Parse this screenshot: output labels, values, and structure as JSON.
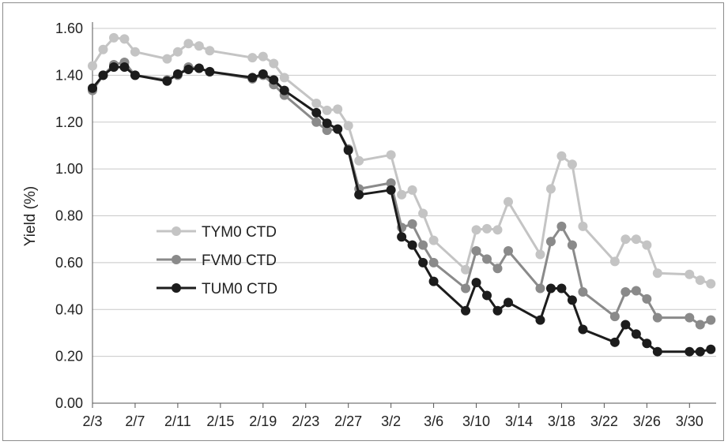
{
  "chart_data": {
    "type": "line",
    "title": "",
    "xlabel": "",
    "ylabel": "Yield (%)",
    "ylim": [
      0,
      1.6
    ],
    "yticks": [
      "0.00",
      "0.20",
      "0.40",
      "0.60",
      "0.80",
      "1.00",
      "1.20",
      "1.40",
      "1.60"
    ],
    "x_tick_labels": [
      "2/3",
      "2/7",
      "2/11",
      "2/15",
      "2/19",
      "2/23",
      "2/27",
      "3/2",
      "3/6",
      "3/10",
      "3/14",
      "3/18",
      "3/22",
      "3/26",
      "3/30"
    ],
    "x_tick_day": [
      0,
      4,
      8,
      12,
      16,
      20,
      24,
      28,
      32,
      36,
      40,
      44,
      48,
      52,
      56
    ],
    "x_range": [
      0,
      58.5
    ],
    "grid": true,
    "legend_position": "center-left",
    "series": [
      {
        "name": "TYM0 CTD",
        "color": "#c4c4c4",
        "points": [
          [
            0,
            1.44
          ],
          [
            1,
            1.51
          ],
          [
            2,
            1.56
          ],
          [
            3,
            1.555
          ],
          [
            4,
            1.5
          ],
          [
            7,
            1.47
          ],
          [
            8,
            1.5
          ],
          [
            9,
            1.535
          ],
          [
            10,
            1.525
          ],
          [
            11,
            1.505
          ],
          [
            15,
            1.475
          ],
          [
            16,
            1.48
          ],
          [
            17,
            1.45
          ],
          [
            18,
            1.39
          ],
          [
            21,
            1.28
          ],
          [
            22,
            1.25
          ],
          [
            23,
            1.255
          ],
          [
            24,
            1.185
          ],
          [
            25,
            1.035
          ],
          [
            28,
            1.06
          ],
          [
            29,
            0.89
          ],
          [
            30,
            0.91
          ],
          [
            31,
            0.81
          ],
          [
            32,
            0.695
          ],
          [
            35,
            0.57
          ],
          [
            36,
            0.74
          ],
          [
            37,
            0.745
          ],
          [
            38,
            0.74
          ],
          [
            39,
            0.86
          ],
          [
            42,
            0.635
          ],
          [
            43,
            0.915
          ],
          [
            44,
            1.055
          ],
          [
            45,
            1.02
          ],
          [
            46,
            0.755
          ],
          [
            49,
            0.605
          ],
          [
            50,
            0.7
          ],
          [
            51,
            0.7
          ],
          [
            52,
            0.675
          ],
          [
            53,
            0.555
          ],
          [
            56,
            0.55
          ],
          [
            57,
            0.525
          ],
          [
            58,
            0.51
          ]
        ]
      },
      {
        "name": "FVM0 CTD",
        "color": "#8a8a8a",
        "points": [
          [
            0,
            1.335
          ],
          [
            1,
            1.4
          ],
          [
            2,
            1.445
          ],
          [
            3,
            1.455
          ],
          [
            4,
            1.4
          ],
          [
            7,
            1.38
          ],
          [
            8,
            1.4
          ],
          [
            9,
            1.435
          ],
          [
            10,
            1.43
          ],
          [
            11,
            1.415
          ],
          [
            15,
            1.385
          ],
          [
            16,
            1.4
          ],
          [
            17,
            1.36
          ],
          [
            18,
            1.315
          ],
          [
            21,
            1.2
          ],
          [
            22,
            1.165
          ],
          [
            23,
            1.17
          ],
          [
            24,
            1.085
          ],
          [
            25,
            0.915
          ],
          [
            28,
            0.94
          ],
          [
            29,
            0.75
          ],
          [
            30,
            0.765
          ],
          [
            31,
            0.675
          ],
          [
            32,
            0.6
          ],
          [
            35,
            0.49
          ],
          [
            36,
            0.65
          ],
          [
            37,
            0.615
          ],
          [
            38,
            0.575
          ],
          [
            39,
            0.65
          ],
          [
            42,
            0.49
          ],
          [
            43,
            0.69
          ],
          [
            44,
            0.755
          ],
          [
            45,
            0.675
          ],
          [
            46,
            0.475
          ],
          [
            49,
            0.37
          ],
          [
            50,
            0.475
          ],
          [
            51,
            0.48
          ],
          [
            52,
            0.445
          ],
          [
            53,
            0.365
          ],
          [
            56,
            0.365
          ],
          [
            57,
            0.335
          ],
          [
            58,
            0.355
          ]
        ]
      },
      {
        "name": "TUM0 CTD",
        "color": "#1c1c1c",
        "points": [
          [
            0,
            1.345
          ],
          [
            1,
            1.4
          ],
          [
            2,
            1.435
          ],
          [
            3,
            1.435
          ],
          [
            4,
            1.4
          ],
          [
            7,
            1.375
          ],
          [
            8,
            1.405
          ],
          [
            9,
            1.425
          ],
          [
            10,
            1.43
          ],
          [
            11,
            1.415
          ],
          [
            15,
            1.39
          ],
          [
            16,
            1.405
          ],
          [
            17,
            1.38
          ],
          [
            18,
            1.335
          ],
          [
            21,
            1.24
          ],
          [
            22,
            1.195
          ],
          [
            23,
            1.17
          ],
          [
            24,
            1.08
          ],
          [
            25,
            0.89
          ],
          [
            28,
            0.91
          ],
          [
            29,
            0.71
          ],
          [
            30,
            0.675
          ],
          [
            31,
            0.6
          ],
          [
            32,
            0.52
          ],
          [
            35,
            0.395
          ],
          [
            36,
            0.515
          ],
          [
            37,
            0.46
          ],
          [
            38,
            0.395
          ],
          [
            39,
            0.43
          ],
          [
            42,
            0.355
          ],
          [
            43,
            0.49
          ],
          [
            44,
            0.49
          ],
          [
            45,
            0.44
          ],
          [
            46,
            0.315
          ],
          [
            49,
            0.26
          ],
          [
            50,
            0.335
          ],
          [
            51,
            0.295
          ],
          [
            52,
            0.255
          ],
          [
            53,
            0.22
          ],
          [
            56,
            0.22
          ],
          [
            57,
            0.22
          ],
          [
            58,
            0.23
          ]
        ]
      }
    ]
  }
}
